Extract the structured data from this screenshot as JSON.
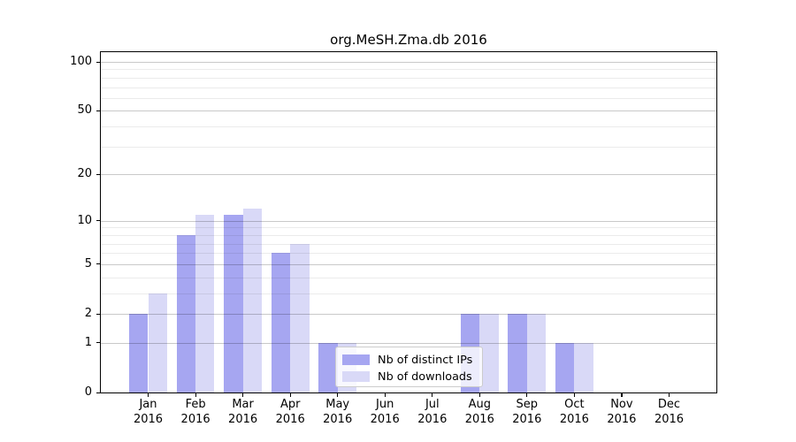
{
  "title": "org.MeSH.Zma.db 2016",
  "legend": {
    "items": [
      {
        "label": "Nb of distinct IPs",
        "color": "#a6a6f1"
      },
      {
        "label": "Nb of downloads",
        "color": "#d9d9f7"
      }
    ]
  },
  "chart_data": {
    "type": "bar",
    "title": "org.MeSH.Zma.db 2016",
    "categories": [
      "Jan",
      "Feb",
      "Mar",
      "Apr",
      "May",
      "Jun",
      "Jul",
      "Aug",
      "Sep",
      "Oct",
      "Nov",
      "Dec"
    ],
    "year": "2016",
    "series": [
      {
        "name": "Nb of distinct IPs",
        "color": "#a6a6f1",
        "values": [
          2,
          8,
          11,
          6,
          1,
          0,
          0,
          2,
          2,
          1,
          0,
          0
        ]
      },
      {
        "name": "Nb of downloads",
        "color": "#d9d9f7",
        "values": [
          3,
          11,
          12,
          7,
          1,
          0,
          0,
          2,
          2,
          1,
          0,
          0
        ]
      }
    ],
    "xlabel": "",
    "ylabel": "",
    "yscale": "log10(value+1)",
    "yticks": [
      0,
      1,
      2,
      5,
      10,
      20,
      50,
      100
    ],
    "minor_gridlines": [
      3,
      4,
      6,
      7,
      8,
      9,
      30,
      40,
      60,
      70,
      80,
      90
    ],
    "ylim": [
      0,
      115
    ],
    "grid": "horizontal",
    "legend_position": "inside-lower-center"
  }
}
